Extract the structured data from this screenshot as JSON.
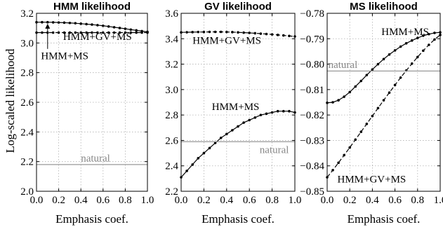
{
  "figure": {
    "ylabel": "Log-scaled likelihood"
  },
  "chart_data": [
    {
      "type": "line",
      "title": "HMM likelihood",
      "xlabel": "Emphasis coef.",
      "xlim": [
        0,
        1
      ],
      "ylim": [
        2.0,
        3.2
      ],
      "xticks": [
        "0.0",
        "0.2",
        "0.4",
        "0.6",
        "0.8",
        "1.0"
      ],
      "yticks": [
        "2.0",
        "2.2",
        "2.4",
        "2.6",
        "2.8",
        "3.0",
        "3.2"
      ],
      "grid": true,
      "series": [
        {
          "name": "HMM+MS",
          "style": "solid-dots",
          "x": [
            0,
            0.05,
            0.1,
            0.15,
            0.2,
            0.25,
            0.3,
            0.35,
            0.4,
            0.45,
            0.5,
            0.55,
            0.6,
            0.65,
            0.7,
            0.75,
            0.8,
            0.85,
            0.9,
            0.95,
            1.0
          ],
          "y": [
            3.14,
            3.14,
            3.14,
            3.139,
            3.138,
            3.137,
            3.135,
            3.133,
            3.13,
            3.127,
            3.124,
            3.12,
            3.116,
            3.111,
            3.106,
            3.101,
            3.096,
            3.09,
            3.085,
            3.08,
            3.075
          ]
        },
        {
          "name": "HMM+GV+MS",
          "style": "dashed-dots",
          "x": [
            0,
            0.05,
            0.1,
            0.15,
            0.2,
            0.25,
            0.3,
            0.35,
            0.4,
            0.45,
            0.5,
            0.55,
            0.6,
            0.65,
            0.7,
            0.75,
            0.8,
            0.85,
            0.9,
            0.95,
            1.0
          ],
          "y": [
            3.07,
            3.07,
            3.07,
            3.07,
            3.07,
            3.07,
            3.07,
            3.07,
            3.07,
            3.07,
            3.07,
            3.07,
            3.07,
            3.07,
            3.07,
            3.07,
            3.07,
            3.07,
            3.07,
            3.07,
            3.07
          ]
        },
        {
          "name": "natural",
          "style": "gray-solid",
          "x": [
            0,
            1
          ],
          "y": [
            2.18,
            2.18
          ]
        }
      ],
      "annotations": [
        {
          "text": "HMM+GV+MS",
          "at": [
            0.24,
            3.02
          ]
        },
        {
          "text": "HMM+MS",
          "at": [
            0.04,
            2.89
          ]
        },
        {
          "text": "natural",
          "at": [
            0.4,
            2.2
          ]
        }
      ],
      "arrow": {
        "from": [
          0.1,
          2.96
        ],
        "to": [
          0.1,
          3.13
        ]
      }
    },
    {
      "type": "line",
      "title": "GV likelihood",
      "xlabel": "Emphasis coef.",
      "xlim": [
        0,
        1
      ],
      "ylim": [
        2.2,
        3.6
      ],
      "xticks": [
        "0.0",
        "0.2",
        "0.4",
        "0.6",
        "0.8",
        "1.0"
      ],
      "yticks": [
        "2.2",
        "2.4",
        "2.6",
        "2.8",
        "3.0",
        "3.2",
        "3.4",
        "3.6"
      ],
      "grid": true,
      "series": [
        {
          "name": "HMM+GV+MS",
          "style": "dashed-dots",
          "x": [
            0,
            0.05,
            0.1,
            0.15,
            0.2,
            0.25,
            0.3,
            0.35,
            0.4,
            0.45,
            0.5,
            0.55,
            0.6,
            0.65,
            0.7,
            0.75,
            0.8,
            0.85,
            0.9,
            0.95,
            1.0
          ],
          "y": [
            3.45,
            3.451,
            3.452,
            3.453,
            3.453,
            3.454,
            3.454,
            3.454,
            3.453,
            3.452,
            3.45,
            3.448,
            3.446,
            3.443,
            3.44,
            3.437,
            3.434,
            3.43,
            3.426,
            3.422,
            3.418
          ]
        },
        {
          "name": "HMM+MS",
          "style": "solid-dots",
          "x": [
            0,
            0.05,
            0.1,
            0.15,
            0.2,
            0.25,
            0.3,
            0.35,
            0.4,
            0.45,
            0.5,
            0.55,
            0.6,
            0.65,
            0.7,
            0.75,
            0.8,
            0.85,
            0.9,
            0.95,
            1.0
          ],
          "y": [
            2.31,
            2.36,
            2.41,
            2.46,
            2.5,
            2.54,
            2.58,
            2.62,
            2.65,
            2.68,
            2.71,
            2.74,
            2.76,
            2.78,
            2.8,
            2.81,
            2.82,
            2.83,
            2.83,
            2.83,
            2.82
          ]
        },
        {
          "name": "natural",
          "style": "gray-solid",
          "x": [
            0,
            1
          ],
          "y": [
            2.59,
            2.59
          ]
        }
      ],
      "annotations": [
        {
          "text": "HMM+GV+MS",
          "at": [
            0.1,
            3.36
          ]
        },
        {
          "text": "HMM+MS",
          "at": [
            0.27,
            2.84
          ]
        },
        {
          "text": "natural",
          "at": [
            0.69,
            2.5
          ]
        }
      ]
    },
    {
      "type": "line",
      "title": "MS likelihood",
      "xlabel": "Emphasis coef.",
      "xlim": [
        0,
        1
      ],
      "ylim": [
        -0.85,
        -0.78
      ],
      "xticks": [
        "0.0",
        "0.2",
        "0.4",
        "0.6",
        "0.8",
        "1.0"
      ],
      "yticks": [
        "−0.85",
        "−0.84",
        "−0.83",
        "−0.82",
        "−0.81",
        "−0.80",
        "−0.79",
        "−0.78"
      ],
      "yvals": [
        -0.85,
        -0.84,
        -0.83,
        -0.82,
        -0.81,
        -0.8,
        -0.79,
        -0.78
      ],
      "grid": true,
      "series": [
        {
          "name": "HMM+MS",
          "style": "solid-dots",
          "x": [
            0,
            0.05,
            0.1,
            0.15,
            0.2,
            0.25,
            0.3,
            0.35,
            0.4,
            0.45,
            0.5,
            0.55,
            0.6,
            0.65,
            0.7,
            0.75,
            0.8,
            0.85,
            0.9,
            0.95,
            1.0
          ],
          "y": [
            -0.8152,
            -0.815,
            -0.8142,
            -0.8128,
            -0.811,
            -0.8088,
            -0.8066,
            -0.8043,
            -0.8021,
            -0.8,
            -0.798,
            -0.7962,
            -0.7946,
            -0.7931,
            -0.7918,
            -0.7907,
            -0.7897,
            -0.7888,
            -0.7882,
            -0.7877,
            -0.7875
          ]
        },
        {
          "name": "HMM+GV+MS",
          "style": "dashed-dots",
          "x": [
            0,
            0.05,
            0.1,
            0.15,
            0.2,
            0.25,
            0.3,
            0.35,
            0.4,
            0.45,
            0.5,
            0.55,
            0.6,
            0.65,
            0.7,
            0.75,
            0.8,
            0.85,
            0.9,
            0.95,
            1.0
          ],
          "y": [
            -0.8445,
            -0.8417,
            -0.8388,
            -0.8358,
            -0.8328,
            -0.8297,
            -0.8266,
            -0.8235,
            -0.8204,
            -0.8173,
            -0.8142,
            -0.8112,
            -0.8082,
            -0.8053,
            -0.8025,
            -0.7998,
            -0.7972,
            -0.7947,
            -0.7924,
            -0.7903,
            -0.7885
          ]
        },
        {
          "name": "natural",
          "style": "gray-solid",
          "x": [
            0,
            1
          ],
          "y": [
            -0.8027,
            -0.8027
          ]
        }
      ],
      "annotations": [
        {
          "text": "HMM+MS",
          "at": [
            0.48,
            -0.7885
          ]
        },
        {
          "text": "natural",
          "at": [
            0.01,
            -0.8015
          ]
        },
        {
          "text": "HMM+GV+MS",
          "at": [
            0.09,
            -0.8465
          ]
        }
      ]
    }
  ]
}
